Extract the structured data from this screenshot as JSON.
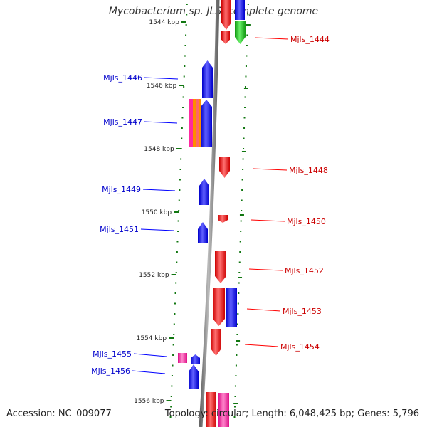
{
  "title": "Mycobacterium sp. JLS, complete genome",
  "footer": {
    "accession": "Accession: NC_009077",
    "summary": "Topology: circular; Length: 6,048,425 bp; Genes: 5,796"
  },
  "colors": {
    "forward": "#ff0000",
    "reverse": "#0000ff",
    "green": "#22cc22",
    "pink": "#ff2aa0",
    "orange": "#ff8c00",
    "backbone": "#888888",
    "tick": "#117711"
  },
  "scale_labels": [
    "1544 kbp",
    "1546 kbp",
    "1548 kbp",
    "1550 kbp",
    "1552 kbp",
    "1554 kbp",
    "1556 kbp"
  ],
  "forward_labels": [
    "Mjls_1444",
    "Mjls_1448",
    "Mjls_1450",
    "Mjls_1452",
    "Mjls_1453",
    "Mjls_1454"
  ],
  "reverse_labels": [
    "Mjls_1446",
    "Mjls_1447",
    "Mjls_1449",
    "Mjls_1451",
    "Mjls_1455",
    "Mjls_1456"
  ]
}
